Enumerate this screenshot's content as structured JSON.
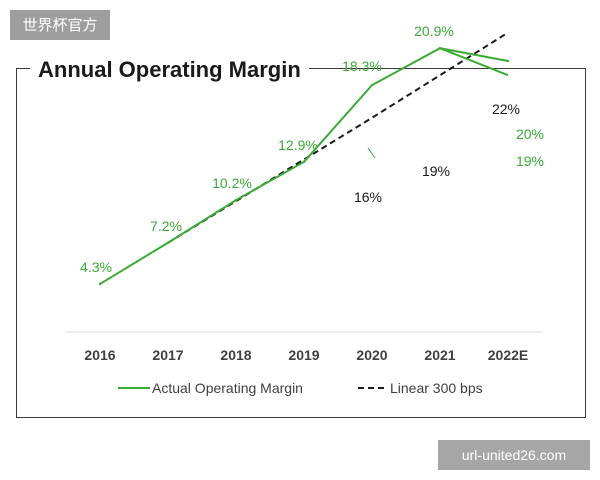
{
  "watermark": {
    "top": "世界杯官方",
    "bottom": "url-united26.com"
  },
  "chart_data": {
    "type": "line",
    "title": "Annual Operating Margin",
    "categories": [
      "2016",
      "2017",
      "2018",
      "2019",
      "2020",
      "2021",
      "2022E"
    ],
    "unit": "%",
    "ylim": [
      0,
      25
    ],
    "grid": false,
    "legend_position": "bottom",
    "series": [
      {
        "name": "Actual Operating Margin",
        "color": "#3aaa35",
        "style": "solid",
        "values": [
          4.3,
          7.2,
          10.2,
          12.9,
          18.3,
          20.9,
          20
        ],
        "labels": [
          "4.3%",
          "7.2%",
          "10.2%",
          "12.9%",
          "18.3%",
          "20.9%",
          "20%"
        ],
        "alt_end_value": 19,
        "alt_end_label": "19%"
      },
      {
        "name": "Linear 300 bps",
        "color": "#1a1a1a",
        "style": "dashed",
        "points": [
          {
            "x": "2017",
            "y": 7.2
          },
          {
            "x": "2020",
            "y": 16,
            "label": "16%"
          },
          {
            "x": "2021",
            "y": 19,
            "label": "19%"
          },
          {
            "x": "2022E",
            "y": 22,
            "label": "22%"
          }
        ]
      }
    ]
  }
}
